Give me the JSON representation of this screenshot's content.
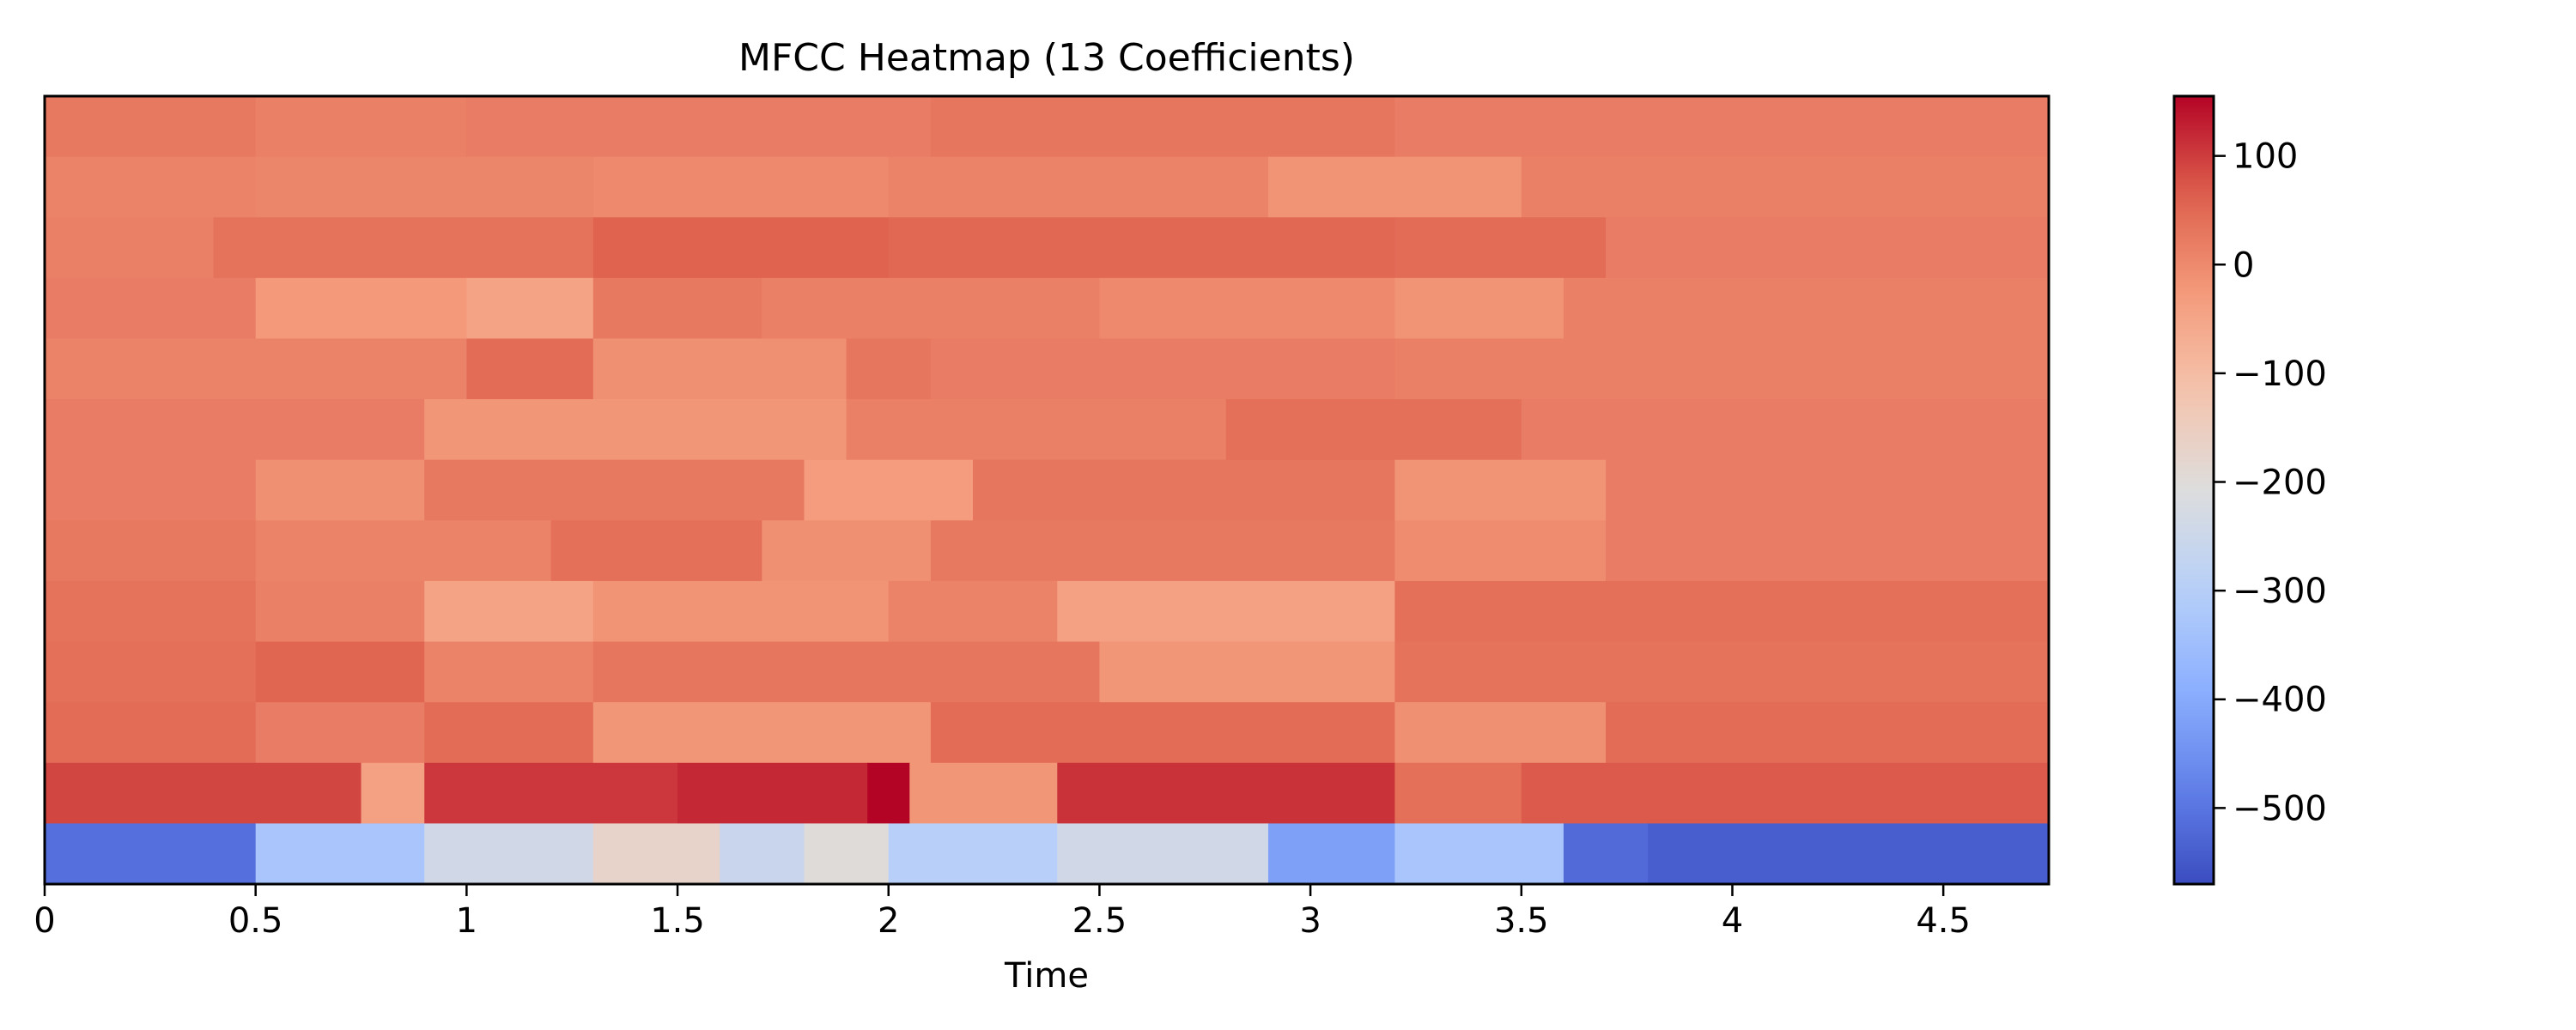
{
  "chart_data": {
    "type": "heatmap",
    "title": "MFCC Heatmap (13 Coefficients)",
    "xlabel": "Time",
    "ylabel": "",
    "xlim": [
      0,
      4.75
    ],
    "x_ticks": [
      "0",
      "0.5",
      "1",
      "1.5",
      "2",
      "2.5",
      "3",
      "3.5",
      "4",
      "4.5"
    ],
    "x_tick_values": [
      0,
      0.5,
      1,
      1.5,
      2,
      2.5,
      3,
      3.5,
      4,
      4.5
    ],
    "n_coefficients": 13,
    "colormap": "coolwarm",
    "colorbar": {
      "vmin": -570,
      "vmax": 155,
      "ticks": [
        "100",
        "0",
        "−100",
        "−200",
        "−300",
        "−400",
        "−500"
      ],
      "tick_values": [
        100,
        0,
        -100,
        -200,
        -300,
        -400,
        -500
      ]
    },
    "rows_top_to_bottom": [
      {
        "coefficient": 12,
        "segments": [
          [
            0,
            0.5,
            25
          ],
          [
            0.5,
            1.0,
            15
          ],
          [
            1.0,
            2.1,
            20
          ],
          [
            2.1,
            3.2,
            30
          ],
          [
            3.2,
            4.75,
            20
          ]
        ]
      },
      {
        "coefficient": 11,
        "segments": [
          [
            0,
            0.5,
            10
          ],
          [
            0.5,
            1.3,
            5
          ],
          [
            1.3,
            2.0,
            0
          ],
          [
            2.0,
            2.9,
            10
          ],
          [
            2.9,
            3.5,
            -15
          ],
          [
            3.5,
            4.75,
            15
          ]
        ]
      },
      {
        "coefficient": 10,
        "segments": [
          [
            0,
            0.4,
            15
          ],
          [
            0.4,
            1.3,
            35
          ],
          [
            1.3,
            2.0,
            60
          ],
          [
            2.0,
            3.2,
            50
          ],
          [
            3.2,
            3.7,
            45
          ],
          [
            3.7,
            4.75,
            20
          ]
        ]
      },
      {
        "coefficient": 9,
        "segments": [
          [
            0,
            0.5,
            20
          ],
          [
            0.5,
            1.0,
            -25
          ],
          [
            1.0,
            1.3,
            -45
          ],
          [
            1.3,
            1.7,
            25
          ],
          [
            1.7,
            2.5,
            15
          ],
          [
            2.5,
            3.2,
            0
          ],
          [
            3.2,
            3.6,
            -15
          ],
          [
            3.6,
            4.75,
            15
          ]
        ]
      },
      {
        "coefficient": 8,
        "segments": [
          [
            0,
            1.0,
            10
          ],
          [
            1.0,
            1.3,
            45
          ],
          [
            1.3,
            1.9,
            -10
          ],
          [
            1.9,
            2.1,
            30
          ],
          [
            2.1,
            3.2,
            20
          ],
          [
            3.2,
            4.75,
            15
          ]
        ]
      },
      {
        "coefficient": 7,
        "segments": [
          [
            0,
            0.9,
            20
          ],
          [
            0.9,
            1.9,
            -20
          ],
          [
            1.9,
            2.8,
            15
          ],
          [
            2.8,
            3.5,
            40
          ],
          [
            3.5,
            4.75,
            20
          ]
        ]
      },
      {
        "coefficient": 6,
        "segments": [
          [
            0,
            0.5,
            20
          ],
          [
            0.5,
            0.9,
            -10
          ],
          [
            0.9,
            1.8,
            25
          ],
          [
            1.8,
            2.2,
            -30
          ],
          [
            2.2,
            3.2,
            30
          ],
          [
            3.2,
            3.7,
            -15
          ],
          [
            3.7,
            4.75,
            20
          ]
        ]
      },
      {
        "coefficient": 5,
        "segments": [
          [
            0,
            0.5,
            25
          ],
          [
            0.5,
            1.2,
            10
          ],
          [
            1.2,
            1.7,
            40
          ],
          [
            1.7,
            2.1,
            -10
          ],
          [
            2.1,
            3.2,
            25
          ],
          [
            3.2,
            3.7,
            -5
          ],
          [
            3.7,
            4.75,
            20
          ]
        ]
      },
      {
        "coefficient": 4,
        "segments": [
          [
            0,
            0.5,
            35
          ],
          [
            0.5,
            0.9,
            15
          ],
          [
            0.9,
            1.3,
            -45
          ],
          [
            1.3,
            2.0,
            -15
          ],
          [
            2.0,
            2.4,
            10
          ],
          [
            2.4,
            3.2,
            -40
          ],
          [
            3.2,
            4.75,
            40
          ]
        ]
      },
      {
        "coefficient": 3,
        "segments": [
          [
            0,
            0.5,
            40
          ],
          [
            0.5,
            0.9,
            55
          ],
          [
            0.9,
            1.3,
            10
          ],
          [
            1.3,
            2.5,
            30
          ],
          [
            2.5,
            3.2,
            -20
          ],
          [
            3.2,
            4.75,
            35
          ]
        ]
      },
      {
        "coefficient": 2,
        "segments": [
          [
            0,
            0.5,
            45
          ],
          [
            0.5,
            0.9,
            20
          ],
          [
            0.9,
            1.3,
            45
          ],
          [
            1.3,
            2.1,
            -20
          ],
          [
            2.1,
            3.2,
            45
          ],
          [
            3.2,
            3.7,
            -10
          ],
          [
            3.7,
            4.75,
            45
          ]
        ]
      },
      {
        "coefficient": 1,
        "segments": [
          [
            0,
            0.75,
            90
          ],
          [
            0.75,
            0.9,
            -40
          ],
          [
            0.9,
            1.5,
            105
          ],
          [
            1.5,
            1.95,
            120
          ],
          [
            1.95,
            2.05,
            155
          ],
          [
            2.05,
            2.4,
            -20
          ],
          [
            2.4,
            3.2,
            110
          ],
          [
            3.2,
            3.5,
            40
          ],
          [
            3.5,
            4.75,
            70
          ]
        ]
      },
      {
        "coefficient": 0,
        "segments": [
          [
            0,
            0.5,
            -510
          ],
          [
            0.5,
            0.9,
            -330
          ],
          [
            0.9,
            1.3,
            -240
          ],
          [
            1.3,
            1.6,
            -170
          ],
          [
            1.6,
            1.8,
            -260
          ],
          [
            1.8,
            2.0,
            -200
          ],
          [
            2.0,
            2.4,
            -300
          ],
          [
            2.4,
            2.9,
            -240
          ],
          [
            2.9,
            3.2,
            -420
          ],
          [
            3.2,
            3.6,
            -330
          ],
          [
            3.6,
            3.8,
            -520
          ],
          [
            3.8,
            4.75,
            -540
          ]
        ]
      }
    ]
  }
}
